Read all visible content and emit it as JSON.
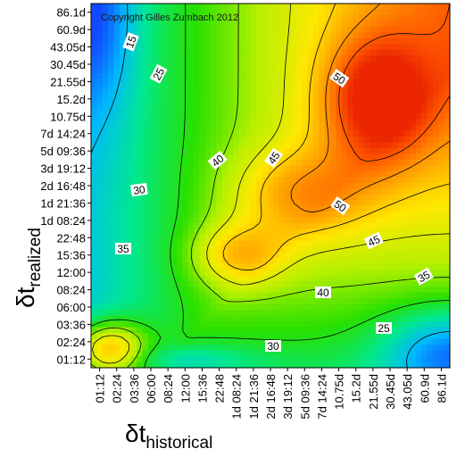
{
  "chart_data": {
    "type": "heatmap",
    "title": "",
    "copyright": "Copyright Gilles Zumbach 2012",
    "xlabel": {
      "main": "δt",
      "sub": "historical"
    },
    "ylabel": {
      "main": "δt",
      "sub": "realized"
    },
    "x_ticks": [
      "01:12",
      "02:24",
      "03:36",
      "06:00",
      "08:24",
      "12:00",
      "15:36",
      "22:48",
      "1d 08:24",
      "1d 21:36",
      "2d 16:48",
      "3d 19:12",
      "5d 09:36",
      "7d 14:24",
      "10.75d",
      "15.2d",
      "21.55d",
      "30.45d",
      "43.05d",
      "60.9d",
      "86.1d"
    ],
    "y_ticks": [
      "86.1d",
      "60.9d",
      "43.05d",
      "30.45d",
      "21.55d",
      "15.2d",
      "10.75d",
      "7d 14:24",
      "5d 09:36",
      "3d 19:12",
      "2d 16:48",
      "1d 21:36",
      "1d 08:24",
      "22:48",
      "15:36",
      "12:00",
      "08:24",
      "06:00",
      "03:36",
      "02:24",
      "01:12"
    ],
    "contour_levels": [
      15,
      25,
      30,
      35,
      40,
      45,
      50
    ],
    "contour_labels": [
      {
        "text": "15",
        "level": 15
      },
      {
        "text": "25",
        "level": 25
      },
      {
        "text": "30",
        "level": 30
      },
      {
        "text": "35",
        "level": 35
      },
      {
        "text": "40",
        "level": 40
      },
      {
        "text": "45",
        "level": 45
      },
      {
        "text": "50",
        "level": 50
      },
      {
        "text": "50",
        "level": 50
      },
      {
        "text": "45",
        "level": 45
      },
      {
        "text": "40",
        "level": 40
      },
      {
        "text": "35",
        "level": 35
      },
      {
        "text": "30",
        "level": 30
      },
      {
        "text": "25",
        "level": 25
      }
    ],
    "colormap": [
      "#1533ff",
      "#00b8ff",
      "#00e890",
      "#28e000",
      "#b8f000",
      "#ffe800",
      "#ffa000",
      "#ff5a00",
      "#e81c00"
    ],
    "value_range": [
      8,
      56
    ],
    "grid": false,
    "legend": "none"
  }
}
